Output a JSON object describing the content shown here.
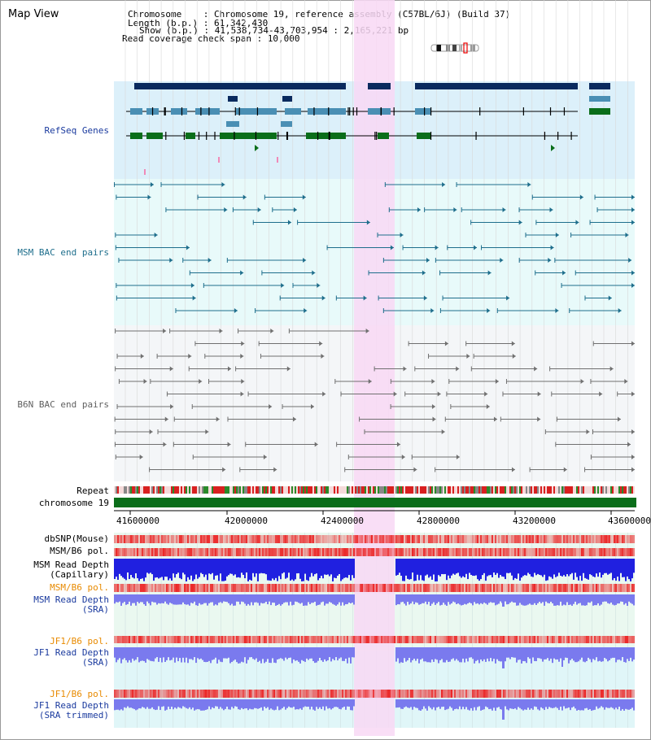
{
  "header": {
    "map_title": "Map View",
    "chromosome_line": "Chromosome    : Chromosome 19, reference assembly (C57BL/6J) (Build 37)",
    "length_line": "Length (b.p.) : 61,342,430",
    "show_line": "Show (b.p.) : 41,538,734-43,703,954 : 2,165,221 bp",
    "coverage_line": "Read coverage check span : 10,000"
  },
  "tracks": {
    "refseq": "RefSeq Genes",
    "msm_bac": "MSM BAC end pairs",
    "b6n_bac": "B6N BAC end pairs",
    "repeat": "Repeat",
    "chromosome": "chromosome 19",
    "dbsnp": "dbSNP(Mouse)",
    "msm_b6_pol_1": "MSM/B6 pol.",
    "msm_read_depth_cap_1": "MSM Read Depth",
    "msm_read_depth_cap_2": "(Capillary)",
    "msm_b6_pol_2": "MSM/B6 pol.",
    "msm_read_depth_sra_1": "MSM Read Depth",
    "msm_read_depth_sra_2": "(SRA)",
    "jf1_b6_pol_1": "JF1/B6 pol.",
    "jf1_read_depth_sra_1": "JF1 Read Depth",
    "jf1_read_depth_sra_2": "(SRA)",
    "jf1_b6_pol_2": "JF1/B6 pol.",
    "jf1_read_depth_trim_1": "JF1 Read Depth",
    "jf1_read_depth_trim_2": "(SRA trimmed)"
  },
  "axis": {
    "ticks": [
      "41600000",
      "42000000",
      "42400000",
      "42800000",
      "43200000",
      "43600000"
    ]
  },
  "colors": {
    "refseq_bg": "#dcf0fa",
    "msm_bg": "#e8fafa",
    "b6n_bg": "#f4f6f8",
    "highlight": "#f8d8f4",
    "gene_dark": "#0a2a5e",
    "gene_mid": "#4a8fb4",
    "gene_green": "#0a6e1a",
    "chromosome_bar": "#0a6e1a",
    "depth_blue": "#2020e0",
    "depth_light": "#7a7aee",
    "pol_red": "#f04040"
  }
}
